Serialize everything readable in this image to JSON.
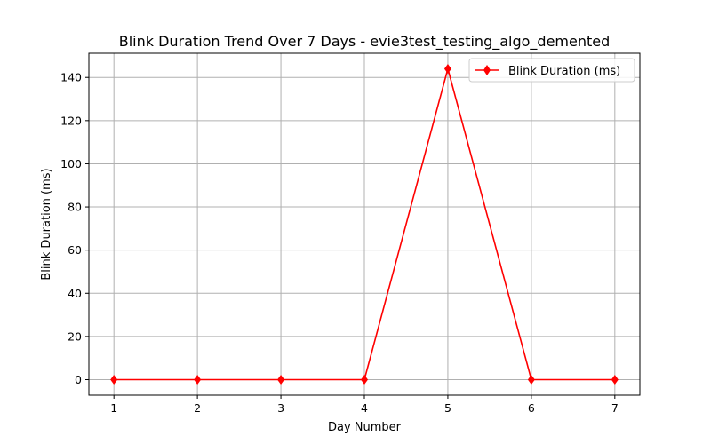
{
  "chart_data": {
    "type": "line",
    "title": "Blink Duration Trend Over 7 Days - evie3test_testing_algo_demented",
    "xlabel": "Day Number",
    "ylabel": "Blink Duration (ms)",
    "x": [
      1,
      2,
      3,
      4,
      5,
      6,
      7
    ],
    "xticks": [
      "1",
      "2",
      "3",
      "4",
      "5",
      "6",
      "7"
    ],
    "yticks": [
      "0",
      "20",
      "40",
      "60",
      "80",
      "100",
      "120",
      "140"
    ],
    "xlim": [
      0.7,
      7.3
    ],
    "ylim": [
      -7.2,
      151.2
    ],
    "grid": true,
    "legend_position": "top-right",
    "series": [
      {
        "name": "Blink Duration (ms)",
        "values": [
          0,
          0,
          0,
          0,
          144,
          0,
          0
        ],
        "color": "#ff0000",
        "marker": "diamond"
      }
    ]
  }
}
